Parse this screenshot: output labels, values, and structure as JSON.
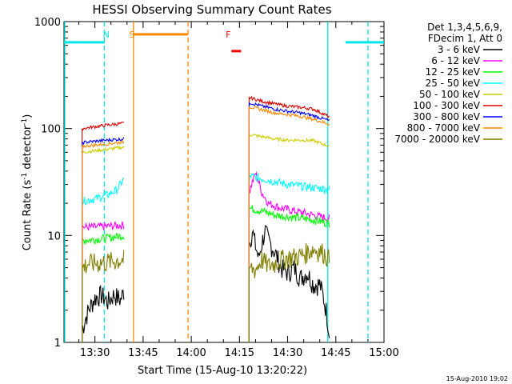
{
  "chart_data": {
    "type": "line",
    "title": "HESSI Observing Summary Count Rates",
    "xlabel": "Start Time (15-Aug-10 13:20:22)",
    "ylabel_main": "Count Rate (s",
    "ylabel_sup": "-1",
    "ylabel_mid": " detector",
    "ylabel_sup2": "-1",
    "ylabel_end": ")",
    "xlim_min": [
      20.37,
      120.0
    ],
    "ylim": [
      1,
      1000
    ],
    "y_scale": "log",
    "x_ticks": [
      {
        "value": 30,
        "label": "13:30"
      },
      {
        "value": 45,
        "label": "13:45"
      },
      {
        "value": 60,
        "label": "14:00"
      },
      {
        "value": 75,
        "label": "14:15"
      },
      {
        "value": 90,
        "label": "14:30"
      },
      {
        "value": 105,
        "label": "14:45"
      },
      {
        "value": 120,
        "label": "15:00"
      }
    ],
    "y_ticks": [
      {
        "value": 1,
        "label": "1"
      },
      {
        "value": 10,
        "label": "10"
      },
      {
        "value": 100,
        "label": "100"
      },
      {
        "value": 1000,
        "label": "1000"
      }
    ],
    "legend_header": [
      "Det 1,3,4,5,6,9,",
      "FDecim 1, Att 0"
    ],
    "legend_placement": "right-outside",
    "series": [
      {
        "name": "3 - 6 keV",
        "color": "#000000",
        "seg1": [
          [
            26.0,
            1.3
          ],
          [
            28.0,
            2.0
          ],
          [
            30.0,
            2.6
          ],
          [
            32.0,
            2.8
          ],
          [
            34.0,
            2.4
          ],
          [
            36.0,
            2.8
          ],
          [
            38.0,
            2.5
          ],
          [
            39.0,
            3.0
          ]
        ],
        "seg2": [
          [
            78.0,
            8.0
          ],
          [
            79.0,
            11.0
          ],
          [
            80.0,
            8.0
          ],
          [
            81.0,
            6.0
          ],
          [
            82.0,
            8.5
          ],
          [
            83.0,
            11.0
          ],
          [
            84.0,
            9.0
          ],
          [
            86.0,
            7.0
          ],
          [
            88.0,
            5.0
          ],
          [
            90.0,
            4.5
          ],
          [
            92.0,
            5.0
          ],
          [
            94.0,
            4.0
          ],
          [
            96.0,
            4.5
          ],
          [
            98.0,
            3.5
          ],
          [
            100.0,
            3.5
          ],
          [
            102.0,
            2.0
          ],
          [
            103.0,
            1.2
          ]
        ]
      },
      {
        "name": "6 - 12 keV",
        "color": "#ff00ff",
        "seg1": [
          [
            26.0,
            12.0
          ],
          [
            30.0,
            12.0
          ],
          [
            34.0,
            12.2
          ],
          [
            39.0,
            12.5
          ]
        ],
        "seg2": [
          [
            78.0,
            25.0
          ],
          [
            80.0,
            38.0
          ],
          [
            82.0,
            25.0
          ],
          [
            84.0,
            20.0
          ],
          [
            88.0,
            18.0
          ],
          [
            92.0,
            17.0
          ],
          [
            96.0,
            16.0
          ],
          [
            100.0,
            15.0
          ],
          [
            103.0,
            14.5
          ]
        ]
      },
      {
        "name": "12 - 25 keV",
        "color": "#00ff00",
        "seg1": [
          [
            26.0,
            9.0
          ],
          [
            30.0,
            9.2
          ],
          [
            34.0,
            9.5
          ],
          [
            39.0,
            10.0
          ]
        ],
        "seg2": [
          [
            78.0,
            18.0
          ],
          [
            82.0,
            17.0
          ],
          [
            86.0,
            15.5
          ],
          [
            90.0,
            15.0
          ],
          [
            94.0,
            14.5
          ],
          [
            98.0,
            14.0
          ],
          [
            103.0,
            13.0
          ]
        ]
      },
      {
        "name": "25 - 50 keV",
        "color": "#00ffff",
        "seg1": [
          [
            26.0,
            21.0
          ],
          [
            30.0,
            22.0
          ],
          [
            34.0,
            24.0
          ],
          [
            37.0,
            27.0
          ],
          [
            39.0,
            34.0
          ]
        ],
        "seg2": [
          [
            78.0,
            36.0
          ],
          [
            82.0,
            34.0
          ],
          [
            86.0,
            32.0
          ],
          [
            90.0,
            30.0
          ],
          [
            94.0,
            29.0
          ],
          [
            98.0,
            28.0
          ],
          [
            103.0,
            27.0
          ]
        ]
      },
      {
        "name": "50 - 100 keV",
        "color": "#cccc00",
        "seg1": [
          [
            26.0,
            60.0
          ],
          [
            30.0,
            62.0
          ],
          [
            34.0,
            64.0
          ],
          [
            39.0,
            67.0
          ]
        ],
        "seg2": [
          [
            78.0,
            88.0
          ],
          [
            82.0,
            84.0
          ],
          [
            86.0,
            80.0
          ],
          [
            90.0,
            78.0
          ],
          [
            94.0,
            78.0
          ],
          [
            98.0,
            77.0
          ],
          [
            103.0,
            68.0
          ]
        ]
      },
      {
        "name": "100 - 300 keV",
        "color": "#dd0000",
        "seg1": [
          [
            26.0,
            100.0
          ],
          [
            30.0,
            104.0
          ],
          [
            34.0,
            108.0
          ],
          [
            39.0,
            112.0
          ]
        ],
        "seg2": [
          [
            78.0,
            195.0
          ],
          [
            82.0,
            180.0
          ],
          [
            86.0,
            170.0
          ],
          [
            90.0,
            162.0
          ],
          [
            94.0,
            158.0
          ],
          [
            98.0,
            152.0
          ],
          [
            103.0,
            128.0
          ]
        ]
      },
      {
        "name": "300 - 800 keV",
        "color": "#0000ff",
        "seg1": [
          [
            26.0,
            74.0
          ],
          [
            30.0,
            76.0
          ],
          [
            34.0,
            78.0
          ],
          [
            39.0,
            80.0
          ]
        ],
        "seg2": [
          [
            78.0,
            175.0
          ],
          [
            82.0,
            162.0
          ],
          [
            86.0,
            152.0
          ],
          [
            90.0,
            145.0
          ],
          [
            94.0,
            140.0
          ],
          [
            98.0,
            132.0
          ],
          [
            103.0,
            118.0
          ]
        ]
      },
      {
        "name": "800 - 7000 keV",
        "color": "#ff8800",
        "seg1": [
          [
            26.0,
            68.0
          ],
          [
            30.0,
            70.0
          ],
          [
            34.0,
            72.0
          ],
          [
            39.0,
            75.0
          ]
        ],
        "seg2": [
          [
            78.0,
            160.0
          ],
          [
            82.0,
            150.0
          ],
          [
            86.0,
            140.0
          ],
          [
            90.0,
            135.0
          ],
          [
            94.0,
            130.0
          ],
          [
            98.0,
            122.0
          ],
          [
            103.0,
            110.0
          ]
        ]
      },
      {
        "name": "7000 - 20000 keV",
        "color": "#808000",
        "seg1": [
          [
            26.0,
            5.0
          ],
          [
            28.0,
            5.5
          ],
          [
            32.0,
            5.6
          ],
          [
            36.0,
            5.8
          ],
          [
            39.0,
            6.0
          ]
        ],
        "seg2": [
          [
            78.0,
            5.0
          ],
          [
            80.0,
            4.8
          ],
          [
            82.0,
            6.0
          ],
          [
            84.0,
            5.2
          ],
          [
            86.0,
            5.5
          ],
          [
            88.0,
            6.0
          ],
          [
            90.0,
            6.2
          ],
          [
            94.0,
            6.5
          ],
          [
            98.0,
            7.5
          ],
          [
            101.0,
            7.0
          ],
          [
            103.0,
            6.0
          ]
        ]
      }
    ],
    "annotations": [
      {
        "label": "N",
        "color": "#00e5e5",
        "x": 33.5
      },
      {
        "label": "S",
        "color": "#ff8800",
        "x": 41.5
      },
      {
        "label": "F",
        "color": "#ff0000",
        "x": 71.5
      }
    ],
    "flag_levels": {
      "night": {
        "color": "#00e5e5",
        "segments": [
          [
            20.37,
            33.0
          ],
          [
            108.0,
            120.0
          ]
        ],
        "level": 640
      },
      "saa": {
        "color": "#ff8800",
        "segments": [
          [
            42.0,
            59.0
          ]
        ],
        "level": 760
      },
      "flare": {
        "color": "#ff0000",
        "segments": [
          [
            72.5,
            75.5
          ]
        ],
        "level": 530
      }
    },
    "markers": [
      {
        "x": 20.6,
        "color": "#00e5e5",
        "style": "solid"
      },
      {
        "x": 32.9,
        "color": "#00e5e5",
        "style": "dash"
      },
      {
        "x": 42.0,
        "color": "#ff8800",
        "style": "solid"
      },
      {
        "x": 59.0,
        "color": "#ff8800",
        "style": "dash"
      },
      {
        "x": 102.5,
        "color": "#00e5e5",
        "style": "solid"
      },
      {
        "x": 115.0,
        "color": "#00e5e5",
        "style": "dash"
      }
    ]
  },
  "footer_date": "15-Aug-2010 19:02"
}
